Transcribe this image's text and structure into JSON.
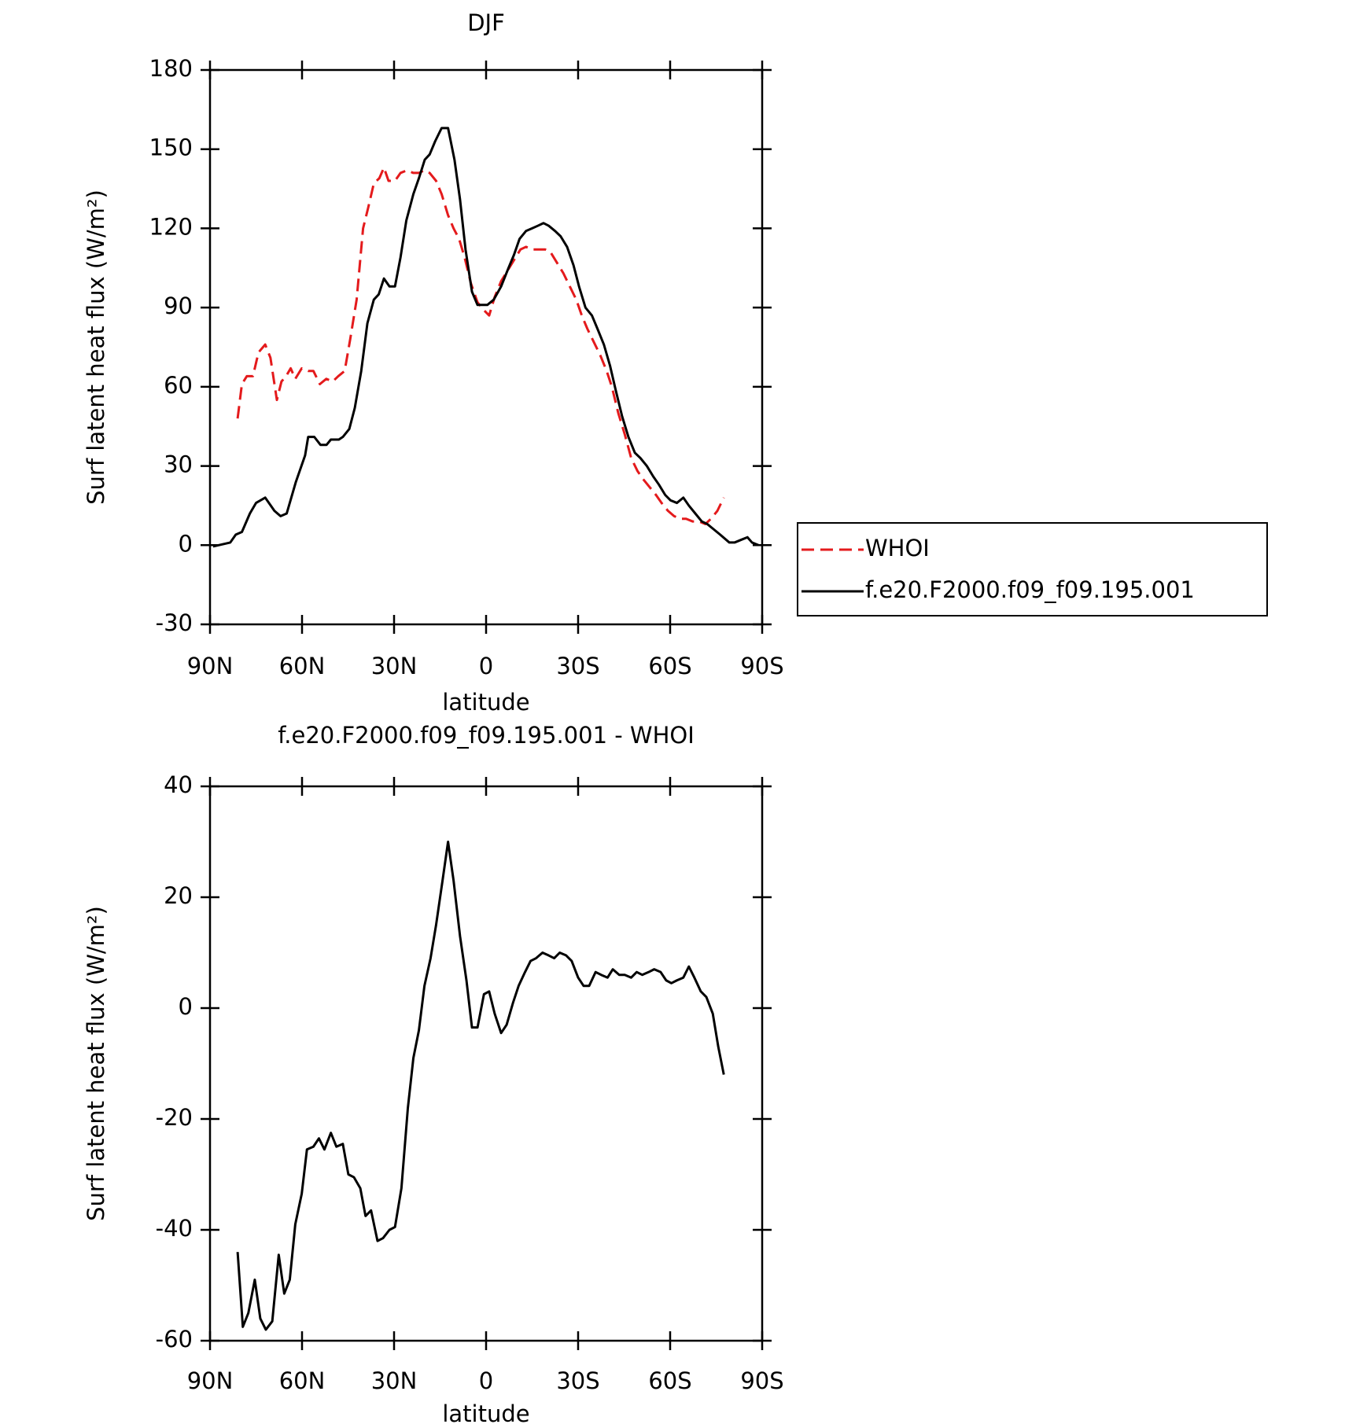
{
  "chart_data": [
    {
      "type": "line",
      "title": "DJF",
      "xlabel": "latitude",
      "ylabel": "Surf latent heat flux (W/m²)",
      "xlim": [
        90,
        -90
      ],
      "xticks": [
        {
          "value": 90,
          "label": "90N"
        },
        {
          "value": 60,
          "label": "60N"
        },
        {
          "value": 30,
          "label": "30N"
        },
        0,
        {
          "value": -30,
          "label": "30S"
        },
        {
          "value": -60,
          "label": "60S"
        },
        {
          "value": -90,
          "label": "90S"
        }
      ],
      "ylim": [
        -30,
        180
      ],
      "yticks": [
        -30,
        0,
        30,
        60,
        90,
        120,
        150,
        180
      ],
      "legend": "right",
      "series": [
        {
          "name": "WHOI",
          "color": "#e41a1c",
          "dash": true,
          "x": [
            81,
            79.6,
            78,
            76,
            74.2,
            72,
            70.3,
            68.2,
            66.7,
            65.2,
            63.7,
            62.2,
            60.1,
            58,
            56.3,
            54.2,
            52.1,
            50,
            48.2,
            46.1,
            44.3,
            42.2,
            40.1,
            38.4,
            36.6,
            34.8,
            33.3,
            31.8,
            29.7,
            27.9,
            25.8,
            23.7,
            21.9,
            20.1,
            18.4,
            16.3,
            14.5,
            12.4,
            10.6,
            8.8,
            7,
            4.9,
            2.8,
            0.7,
            -1,
            -2.8,
            -4.9,
            -7,
            -9.1,
            -11.2,
            -13,
            -15.1,
            -17.2,
            -19.3,
            -21,
            -23.1,
            -25.2,
            -27.3,
            -29.4,
            -31.2,
            -33,
            -35.1,
            -37.2,
            -39.3,
            -41,
            -43.1,
            -45.2,
            -47.3,
            -49.4,
            -51.2,
            -53.3,
            -55.4,
            -57.2,
            -59.3,
            -61.3,
            -63.4,
            -65.2,
            -67.3,
            -69.4,
            -71.5,
            -73.3,
            -75.4,
            -77.5
          ],
          "values": [
            48,
            61,
            64,
            64,
            73,
            76,
            71,
            55,
            62,
            64,
            67,
            63,
            67,
            66,
            66,
            61,
            63,
            62,
            64,
            66,
            78,
            93,
            120,
            128,
            137,
            139,
            143,
            138,
            138,
            141,
            142,
            141,
            141,
            142,
            141,
            138,
            133,
            125,
            120,
            116,
            109,
            99,
            92,
            89,
            87,
            94,
            100,
            104,
            108,
            112,
            113,
            112,
            112,
            112,
            111,
            107,
            103,
            98,
            93,
            87,
            82,
            77,
            72,
            66,
            60,
            50,
            42,
            33,
            28,
            25,
            22,
            19,
            16,
            13,
            11,
            10,
            10,
            9,
            9,
            8,
            10,
            13,
            18
          ]
        },
        {
          "name": "f.e20.F2000.f09_f09.195.001",
          "color": "#000000",
          "dash": false,
          "x": [
            89,
            83.4,
            81.6,
            79.6,
            77,
            75,
            72,
            69,
            67,
            65,
            62,
            59,
            58,
            56,
            54,
            52,
            50.6,
            48,
            46.7,
            44.6,
            42.8,
            40.7,
            38.7,
            36.6,
            35,
            33.3,
            31.5,
            29.7,
            27.9,
            26,
            23.7,
            21.9,
            20,
            18.4,
            16.6,
            14.5,
            12.4,
            10.3,
            8.5,
            6.7,
            4.6,
            2.8,
            -0.4,
            -2.5,
            -4.9,
            -7.3,
            -9.1,
            -10.9,
            -13,
            -15,
            -16.9,
            -18.7,
            -20.4,
            -22.5,
            -24.3,
            -26.4,
            -28.5,
            -30.3,
            -32.4,
            -34.5,
            -36.3,
            -38.4,
            -40.4,
            -42.2,
            -44.3,
            -46.4,
            -48.5,
            -50.3,
            -52.4,
            -54.5,
            -56.3,
            -58.4,
            -60.1,
            -62.2,
            -64.3,
            -66.1,
            -68.2,
            -70.3,
            -72.1,
            -74.2,
            -76.3,
            -79.3,
            -81,
            -83.1,
            -85.2,
            -86.7,
            -88.8
          ],
          "values": [
            -0.5,
            1,
            4,
            5,
            12,
            16,
            18,
            13,
            11,
            12,
            24,
            34,
            41,
            41,
            38,
            38,
            40,
            40,
            41,
            44,
            52,
            66,
            84,
            93,
            95,
            101,
            98,
            98,
            109,
            123,
            133,
            139,
            146,
            148,
            153,
            158,
            158,
            146,
            131,
            112,
            96,
            91,
            91,
            93,
            98,
            105,
            110,
            116,
            119,
            120,
            121,
            122,
            121,
            119,
            117,
            113,
            106,
            98,
            90,
            87,
            82,
            76,
            68,
            59,
            49,
            41,
            35,
            33,
            30,
            26,
            23,
            19,
            17,
            16,
            18,
            15,
            12,
            9,
            8,
            6,
            4,
            1,
            1,
            2,
            3,
            1,
            0
          ]
        }
      ]
    },
    {
      "type": "line",
      "title": "f.e20.F2000.f09_f09.195.001 - WHOI",
      "xlabel": "latitude",
      "ylabel": "Surf latent heat flux (W/m²)",
      "xlim": [
        90,
        -90
      ],
      "xticks": [
        {
          "value": 90,
          "label": "90N"
        },
        {
          "value": 60,
          "label": "60N"
        },
        {
          "value": 30,
          "label": "30N"
        },
        0,
        {
          "value": -30,
          "label": "30S"
        },
        {
          "value": -60,
          "label": "60S"
        },
        {
          "value": -90,
          "label": "90S"
        }
      ],
      "ylim": [
        -60,
        40
      ],
      "yticks": [
        -60,
        -40,
        -20,
        0,
        20,
        40
      ],
      "color": "#000000",
      "x": [
        81,
        79.3,
        77.5,
        75.4,
        73.6,
        71.8,
        69.7,
        67.6,
        65.8,
        64,
        62.2,
        60.1,
        58.4,
        56.3,
        54.5,
        52.7,
        50.6,
        48.8,
        46.7,
        44.9,
        43.1,
        41,
        39.3,
        37.5,
        35.4,
        33.6,
        31.5,
        29.7,
        27.6,
        25.5,
        23.7,
        21.9,
        20.1,
        18.1,
        16.3,
        14.2,
        12.4,
        10.6,
        8.5,
        6.4,
        4.6,
        2.8,
        0.7,
        -1,
        -2.8,
        -4.9,
        -6.7,
        -8.8,
        -10.6,
        -12.7,
        -14.5,
        -16.3,
        -18.4,
        -20.4,
        -22.2,
        -24,
        -26.1,
        -27.9,
        -30,
        -31.8,
        -33.6,
        -35.7,
        -37.5,
        -39.6,
        -41.3,
        -43.4,
        -45.2,
        -47.3,
        -49.1,
        -50.9,
        -53,
        -54.8,
        -56.9,
        -58.7,
        -60.4,
        -62.2,
        -64.3,
        -66.1,
        -67.9,
        -70,
        -71.8,
        -73.9,
        -75.7,
        -77.5
      ],
      "values": [
        -44,
        -57.5,
        -55,
        -49,
        -56,
        -58,
        -56.5,
        -44.5,
        -51.5,
        -49,
        -39,
        -33.5,
        -25.5,
        -25,
        -23.5,
        -25.5,
        -22.5,
        -25,
        -24.5,
        -30,
        -30.5,
        -32.5,
        -37.5,
        -36.5,
        -42,
        -41.5,
        -40,
        -39.5,
        -32.5,
        -18,
        -9,
        -4,
        4,
        9,
        15,
        23,
        30,
        23,
        13,
        5,
        -3.5,
        -3.5,
        2.5,
        3,
        -1,
        -4.5,
        -3,
        1,
        4,
        6.5,
        8.5,
        9,
        10,
        9.5,
        9,
        10,
        9.5,
        8.5,
        5.5,
        4,
        4,
        6.5,
        6,
        5.5,
        7,
        6,
        6,
        5.5,
        6.5,
        6,
        6.5,
        7,
        6.5,
        5,
        4.5,
        5,
        5.5,
        7.5,
        5.5,
        3,
        2,
        -1,
        -7,
        -12
      ]
    }
  ]
}
